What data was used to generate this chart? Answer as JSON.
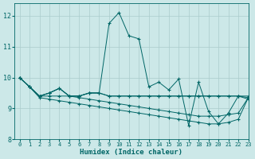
{
  "xlabel": "Humidex (Indice chaleur)",
  "background_color": "#cce8e8",
  "grid_color": "#aacccc",
  "line_color": "#006666",
  "xlim": [
    -0.5,
    23
  ],
  "ylim": [
    8.0,
    12.4
  ],
  "xticks": [
    0,
    1,
    2,
    3,
    4,
    5,
    6,
    7,
    8,
    9,
    10,
    11,
    12,
    13,
    14,
    15,
    16,
    17,
    18,
    19,
    20,
    21,
    22,
    23
  ],
  "yticks": [
    8,
    9,
    10,
    11,
    12
  ],
  "series": [
    [
      10.0,
      9.7,
      9.4,
      9.5,
      9.65,
      9.4,
      9.4,
      9.5,
      9.5,
      11.75,
      12.1,
      11.35,
      11.25,
      9.7,
      9.85,
      9.6,
      9.95,
      8.45,
      9.85,
      8.9,
      8.5,
      8.85,
      9.4,
      9.3
    ],
    [
      10.0,
      9.7,
      9.4,
      9.5,
      9.65,
      9.4,
      9.4,
      9.5,
      9.5,
      9.4,
      9.4,
      9.4,
      9.4,
      9.4,
      9.4,
      9.4,
      9.4,
      9.4,
      9.4,
      9.4,
      9.4,
      9.4,
      9.4,
      9.4
    ],
    [
      10.0,
      9.7,
      9.4,
      9.5,
      9.65,
      9.4,
      9.4,
      9.5,
      9.5,
      9.4,
      9.4,
      9.4,
      9.4,
      9.4,
      9.4,
      9.4,
      9.4,
      9.4,
      9.4,
      9.4,
      9.4,
      9.4,
      9.4,
      9.35
    ],
    [
      10.0,
      9.7,
      9.35,
      9.3,
      9.25,
      9.2,
      9.15,
      9.1,
      9.05,
      9.0,
      8.95,
      8.9,
      8.85,
      8.8,
      8.75,
      8.7,
      8.65,
      8.6,
      8.55,
      8.5,
      8.5,
      8.55,
      8.65,
      9.35
    ],
    [
      10.0,
      9.7,
      9.4,
      9.4,
      9.4,
      9.4,
      9.35,
      9.3,
      9.25,
      9.2,
      9.15,
      9.1,
      9.05,
      9.0,
      8.95,
      8.9,
      8.85,
      8.8,
      8.75,
      8.75,
      8.75,
      8.8,
      8.85,
      9.35
    ]
  ]
}
